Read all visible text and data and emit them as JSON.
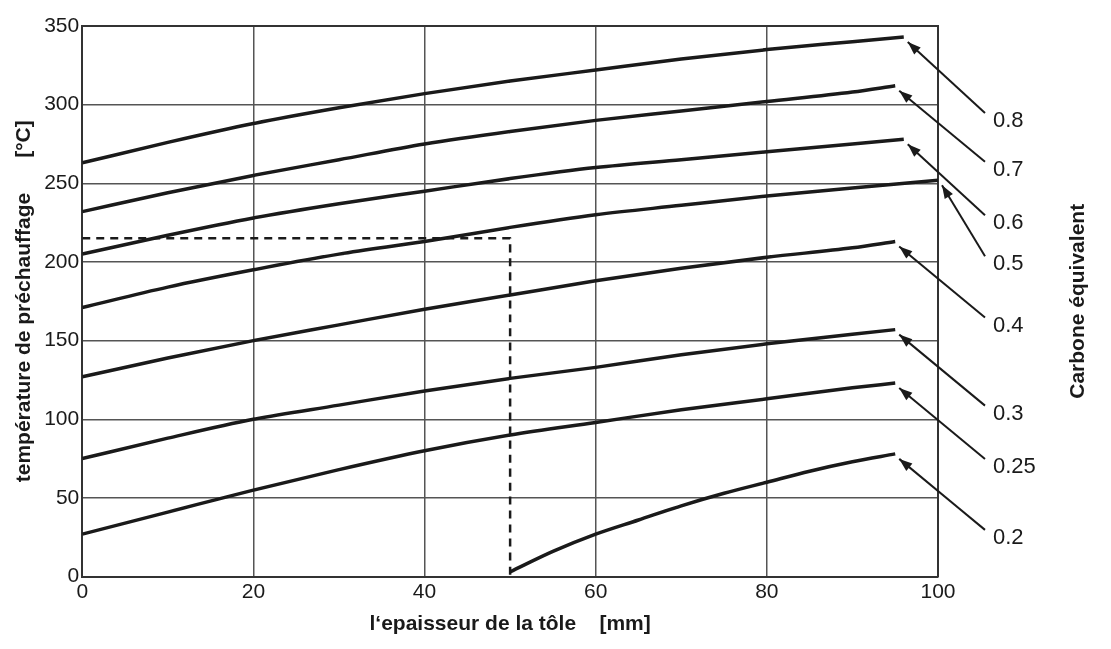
{
  "chart_data": {
    "type": "line",
    "xlabel": "l‘epaisseur de la tôle    [mm]",
    "ylabel": "température de préchauffage      [°C]",
    "annotations": [
      "Carbone équivalent"
    ],
    "xlim": [
      0,
      100
    ],
    "ylim": [
      0,
      350
    ],
    "xticks": [
      0,
      20,
      40,
      60,
      80,
      100
    ],
    "yticks": [
      0,
      50,
      100,
      150,
      200,
      250,
      300,
      350
    ],
    "grid": true,
    "legend": false,
    "marker": "none",
    "series": [
      {
        "name": "0.8",
        "color": "#1a1a1a",
        "x": [
          0,
          10,
          20,
          30,
          40,
          50,
          60,
          70,
          80,
          90,
          96
        ],
        "values": [
          263,
          276,
          288,
          298,
          307,
          315,
          322,
          329,
          335,
          340,
          343
        ]
      },
      {
        "name": "0.7",
        "color": "#1a1a1a",
        "x": [
          0,
          10,
          20,
          30,
          40,
          50,
          60,
          70,
          80,
          90,
          95
        ],
        "values": [
          232,
          244,
          255,
          265,
          275,
          283,
          290,
          296,
          302,
          308,
          312
        ]
      },
      {
        "name": "0.6",
        "color": "#1a1a1a",
        "x": [
          0,
          10,
          20,
          30,
          40,
          50,
          60,
          70,
          80,
          90,
          96
        ],
        "values": [
          205,
          217,
          228,
          237,
          245,
          253,
          260,
          265,
          270,
          275,
          278
        ]
      },
      {
        "name": "0.5",
        "color": "#1a1a1a",
        "x": [
          0,
          10,
          20,
          30,
          40,
          50,
          60,
          70,
          80,
          90,
          100
        ],
        "values": [
          171,
          184,
          195,
          205,
          213,
          222,
          230,
          236,
          242,
          247,
          252
        ]
      },
      {
        "name": "0.4",
        "color": "#1a1a1a",
        "x": [
          0,
          10,
          20,
          30,
          40,
          50,
          60,
          70,
          80,
          90,
          95
        ],
        "values": [
          127,
          139,
          150,
          160,
          170,
          179,
          188,
          196,
          203,
          209,
          213
        ]
      },
      {
        "name": "0.3",
        "color": "#1a1a1a",
        "x": [
          0,
          10,
          20,
          30,
          40,
          50,
          60,
          70,
          80,
          90,
          95
        ],
        "values": [
          75,
          88,
          100,
          109,
          118,
          126,
          133,
          141,
          148,
          154,
          157
        ]
      },
      {
        "name": "0.25",
        "color": "#1a1a1a",
        "x": [
          0,
          10,
          20,
          30,
          40,
          50,
          60,
          70,
          80,
          90,
          95
        ],
        "values": [
          27,
          41,
          55,
          68,
          80,
          90,
          98,
          106,
          113,
          120,
          123
        ]
      },
      {
        "name": "0.2",
        "color": "#1a1a1a",
        "x": [
          50,
          55,
          60,
          65,
          70,
          75,
          80,
          85,
          90,
          95
        ],
        "values": [
          3,
          16,
          27,
          36,
          45,
          53,
          60,
          67,
          73,
          78
        ]
      },
      {
        "color": "#1a1a1a",
        "line_style": "dashed",
        "x": [
          0,
          50,
          50
        ],
        "values": [
          215,
          215,
          0
        ]
      }
    ]
  }
}
